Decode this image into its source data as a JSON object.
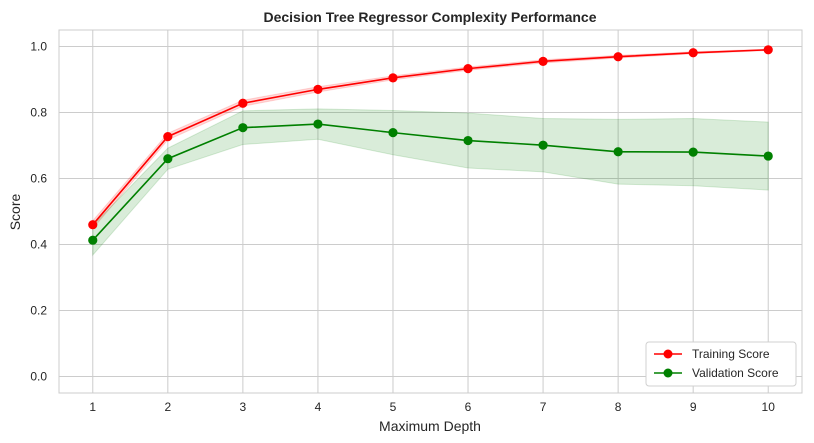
{
  "chart_data": {
    "type": "line",
    "title": "Decision Tree Regressor Complexity Performance",
    "xlabel": "Maximum Depth",
    "ylabel": "Score",
    "x": [
      1,
      2,
      3,
      4,
      5,
      6,
      7,
      8,
      9,
      10
    ],
    "xlim": [
      0.55,
      10.45
    ],
    "ylim": [
      -0.05,
      1.05
    ],
    "yticks": [
      "0.0",
      "0.2",
      "0.4",
      "0.6",
      "0.8",
      "1.0"
    ],
    "grid": true,
    "legend_position": "bottom-right",
    "series": [
      {
        "name": "Training Score",
        "color": "#ff0000",
        "marker": "circle",
        "values": [
          0.46,
          0.727,
          0.828,
          0.87,
          0.905,
          0.933,
          0.955,
          0.969,
          0.981,
          0.99
        ],
        "band_lower": [
          0.448,
          0.717,
          0.819,
          0.862,
          0.899,
          0.928,
          0.95,
          0.965,
          0.978,
          0.988
        ],
        "band_upper": [
          0.472,
          0.737,
          0.837,
          0.878,
          0.911,
          0.938,
          0.96,
          0.973,
          0.984,
          0.992
        ]
      },
      {
        "name": "Validation Score",
        "color": "#008000",
        "marker": "circle",
        "values": [
          0.413,
          0.66,
          0.754,
          0.765,
          0.739,
          0.715,
          0.701,
          0.681,
          0.68,
          0.668
        ],
        "band_lower": [
          0.368,
          0.628,
          0.703,
          0.719,
          0.672,
          0.632,
          0.62,
          0.583,
          0.578,
          0.565
        ],
        "band_upper": [
          0.458,
          0.692,
          0.805,
          0.811,
          0.806,
          0.798,
          0.782,
          0.779,
          0.782,
          0.771
        ]
      }
    ]
  }
}
